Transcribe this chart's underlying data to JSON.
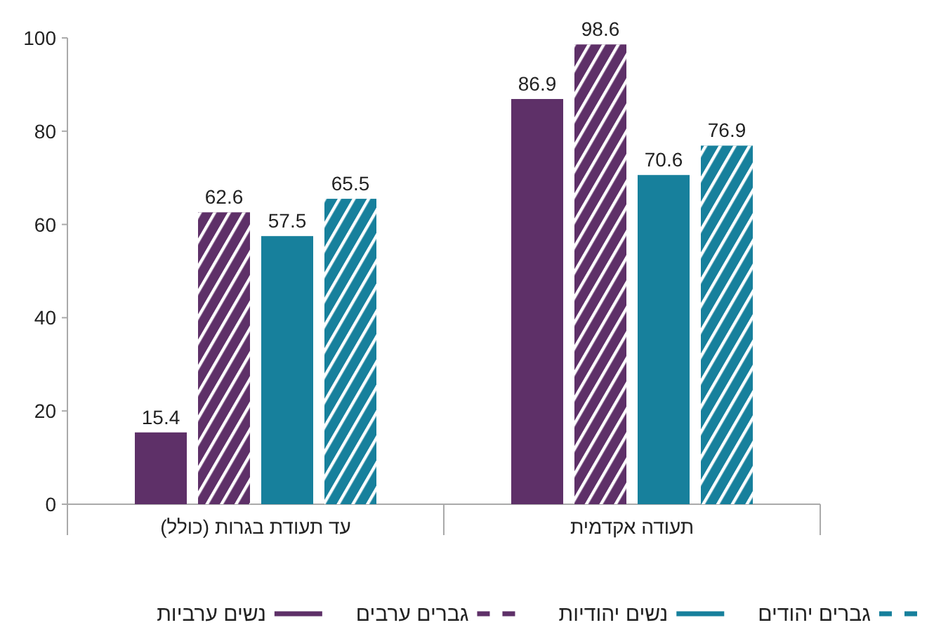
{
  "chart_data": {
    "type": "bar",
    "categories": [
      "עד תעודת בגרות (כולל)",
      "תעודה אקדמית"
    ],
    "series": [
      {
        "name": "נשים ערביות",
        "color": "#5e3068",
        "line_style": "solid",
        "values": [
          15.4,
          86.9
        ]
      },
      {
        "name": "גברים ערבים",
        "color": "#5e3068",
        "line_style": "dashed",
        "values": [
          62.6,
          98.6
        ]
      },
      {
        "name": "נשים יהודיות",
        "color": "#17809c",
        "line_style": "solid",
        "values": [
          57.5,
          70.6
        ]
      },
      {
        "name": "גברים יהודים",
        "color": "#17809c",
        "line_style": "dashed",
        "values": [
          65.5,
          76.9
        ]
      }
    ],
    "ylim": [
      0,
      100
    ],
    "yticks": [
      0,
      20,
      40,
      60,
      80,
      100
    ],
    "data_labels": true,
    "grid": false,
    "legend": "bottom"
  }
}
